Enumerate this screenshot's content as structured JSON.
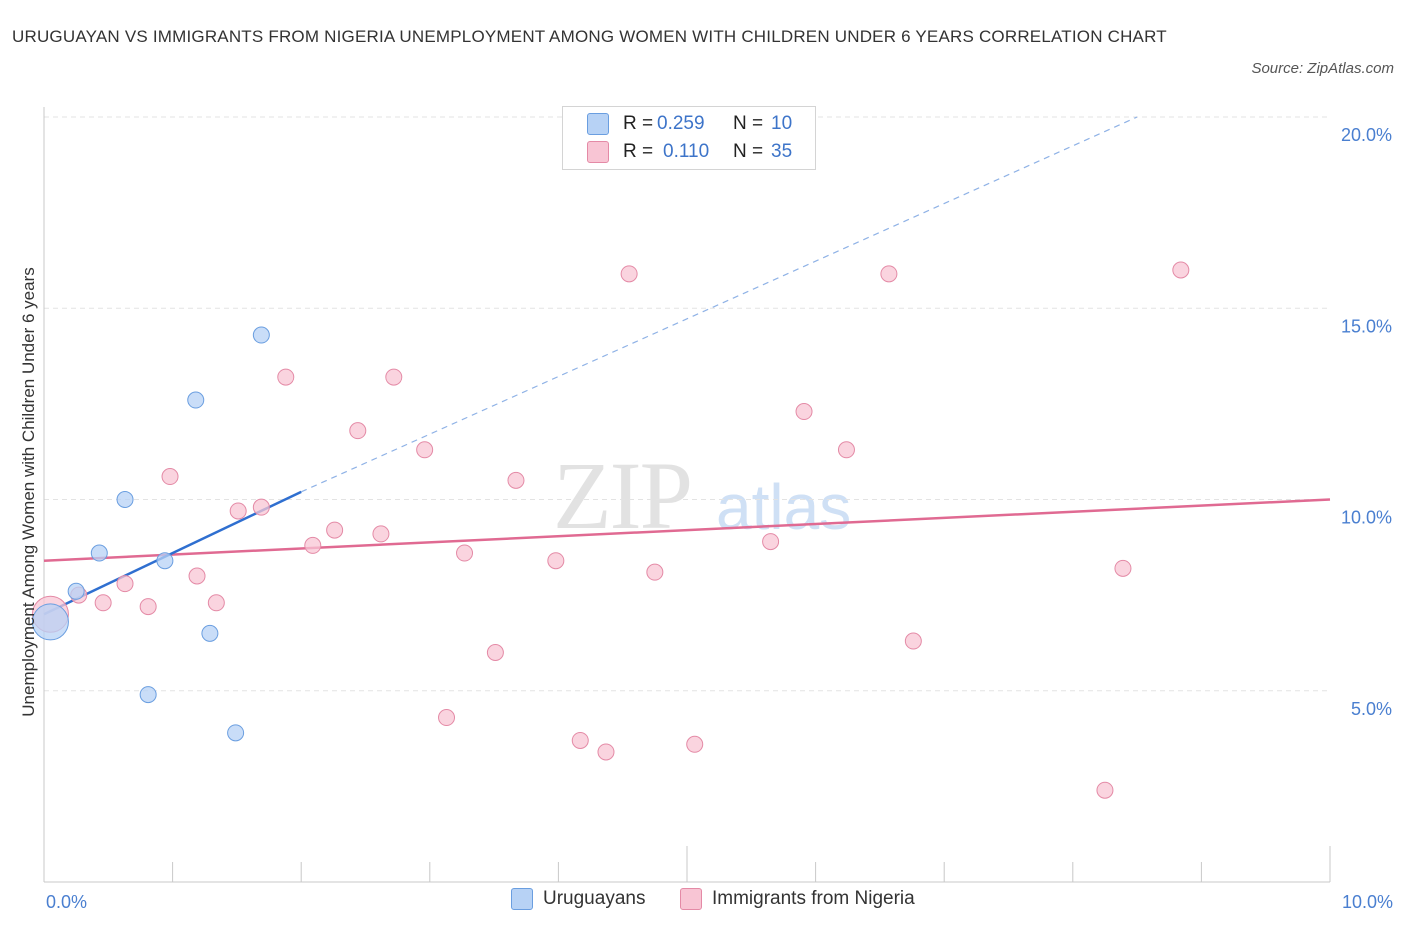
{
  "title": "URUGUAYAN VS IMMIGRANTS FROM NIGERIA UNEMPLOYMENT AMONG WOMEN WITH CHILDREN UNDER 6 YEARS CORRELATION CHART",
  "source": "Source: ZipAtlas.com",
  "watermark": {
    "zip": "ZIP",
    "atlas": "atlas"
  },
  "colors": {
    "uruguayans_fill": "#b7d2f5",
    "uruguayans_stroke": "#6a9ee0",
    "uruguayans_line": "#2f6fd0",
    "nigeria_fill": "#f8c5d4",
    "nigeria_stroke": "#e48aa6",
    "nigeria_line": "#e06a92",
    "grid": "#e3e3e3",
    "tick_text": "#4a7fd0"
  },
  "legend": {
    "rows": [
      {
        "r_label": "R =",
        "r_value": "0.259",
        "n_label": "N =",
        "n_value": "10"
      },
      {
        "r_label": "R =",
        "r_value": "0.110",
        "n_label": "N =",
        "n_value": "35"
      }
    ]
  },
  "chart_data": {
    "type": "scatter",
    "title": "URUGUAYAN VS IMMIGRANTS FROM NIGERIA UNEMPLOYMENT AMONG WOMEN WITH CHILDREN UNDER 6 YEARS CORRELATION CHART",
    "xlabel": "",
    "ylabel": "Unemployment Among Women with Children Under 6 years",
    "xlim": [
      0,
      10
    ],
    "ylim": [
      0,
      20
    ],
    "x_tick_labels": [
      "0.0%",
      "10.0%"
    ],
    "y_ticks": [
      5,
      10,
      15,
      20
    ],
    "y_tick_labels": [
      "5.0%",
      "10.0%",
      "15.0%",
      "20.0%"
    ],
    "series": [
      {
        "name": "Uruguayans",
        "points": [
          {
            "x": 0.05,
            "y": 6.8,
            "size": "large"
          },
          {
            "x": 0.25,
            "y": 7.6
          },
          {
            "x": 0.43,
            "y": 8.6
          },
          {
            "x": 0.63,
            "y": 10.0
          },
          {
            "x": 0.81,
            "y": 4.9
          },
          {
            "x": 0.94,
            "y": 8.4
          },
          {
            "x": 1.18,
            "y": 12.6
          },
          {
            "x": 1.29,
            "y": 6.5
          },
          {
            "x": 1.49,
            "y": 3.9
          },
          {
            "x": 1.69,
            "y": 14.3
          }
        ],
        "trend": {
          "x": [
            0.0,
            2.0
          ],
          "y": [
            7.0,
            10.2
          ]
        },
        "trend_dashed": {
          "x": [
            2.0,
            8.5
          ],
          "y": [
            10.2,
            20.0
          ]
        }
      },
      {
        "name": "Immigrants from Nigeria",
        "points": [
          {
            "x": 0.05,
            "y": 7.0,
            "size": "large"
          },
          {
            "x": 0.27,
            "y": 7.5
          },
          {
            "x": 0.46,
            "y": 7.3
          },
          {
            "x": 0.63,
            "y": 7.8
          },
          {
            "x": 0.81,
            "y": 7.2
          },
          {
            "x": 0.98,
            "y": 10.6
          },
          {
            "x": 1.19,
            "y": 8.0
          },
          {
            "x": 1.34,
            "y": 7.3
          },
          {
            "x": 1.51,
            "y": 9.7
          },
          {
            "x": 1.69,
            "y": 9.8
          },
          {
            "x": 1.88,
            "y": 13.2
          },
          {
            "x": 2.09,
            "y": 8.8
          },
          {
            "x": 2.26,
            "y": 9.2
          },
          {
            "x": 2.44,
            "y": 11.8
          },
          {
            "x": 2.62,
            "y": 9.1
          },
          {
            "x": 2.72,
            "y": 13.2
          },
          {
            "x": 2.96,
            "y": 11.3
          },
          {
            "x": 3.13,
            "y": 4.3
          },
          {
            "x": 3.27,
            "y": 8.6
          },
          {
            "x": 3.51,
            "y": 6.0
          },
          {
            "x": 3.67,
            "y": 10.5
          },
          {
            "x": 3.98,
            "y": 8.4
          },
          {
            "x": 4.17,
            "y": 3.7
          },
          {
            "x": 4.37,
            "y": 3.4
          },
          {
            "x": 4.55,
            "y": 15.9
          },
          {
            "x": 4.75,
            "y": 8.1
          },
          {
            "x": 5.06,
            "y": 3.6
          },
          {
            "x": 5.65,
            "y": 8.9
          },
          {
            "x": 5.91,
            "y": 12.3
          },
          {
            "x": 6.24,
            "y": 11.3
          },
          {
            "x": 6.57,
            "y": 15.9
          },
          {
            "x": 6.76,
            "y": 6.3
          },
          {
            "x": 8.25,
            "y": 2.4
          },
          {
            "x": 8.39,
            "y": 8.2
          },
          {
            "x": 8.84,
            "y": 16.0
          }
        ],
        "trend": {
          "x": [
            0.0,
            10.0
          ],
          "y": [
            8.4,
            10.0
          ]
        }
      }
    ]
  }
}
